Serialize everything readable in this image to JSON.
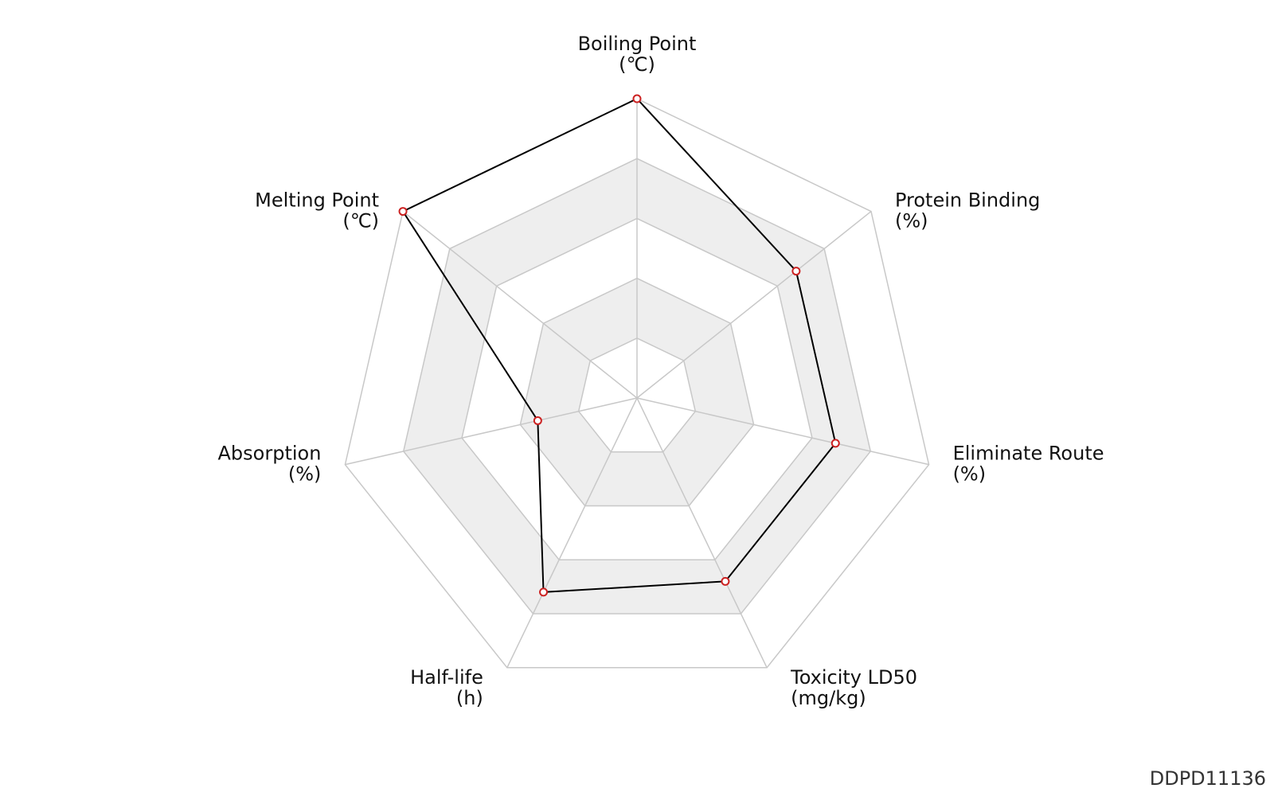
{
  "chart_data": {
    "type": "radar",
    "title": "",
    "axes": [
      {
        "name": "Boiling Point",
        "unit": "(℃)"
      },
      {
        "name": "Protein Binding",
        "unit": "(%)"
      },
      {
        "name": "Eliminate Route",
        "unit": "(%)"
      },
      {
        "name": "Toxicity LD50",
        "unit": "(mg/kg)"
      },
      {
        "name": "Half-life",
        "unit": "(h)"
      },
      {
        "name": "Absorption",
        "unit": "(%)"
      },
      {
        "name": "Melting Point",
        "unit": "(℃)"
      }
    ],
    "scale": {
      "min": 0,
      "max": 5,
      "rings": 5
    },
    "grid": true,
    "band_color": "#eeeeee",
    "grid_color": "#c8c8c8",
    "line_color": "#000000",
    "marker_color": "#cc2222",
    "series": [
      {
        "values": [
          5.0,
          3.4,
          3.4,
          3.4,
          3.6,
          1.7,
          5.0
        ]
      }
    ]
  },
  "footer": {
    "id_label": "DDPD11136"
  }
}
